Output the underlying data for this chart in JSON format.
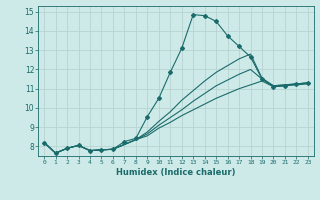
{
  "title": "",
  "xlabel": "Humidex (Indice chaleur)",
  "background_color": "#ceeae8",
  "grid_color": "#b8d4d2",
  "line_color": "#1a6b6b",
  "xlim": [
    -0.5,
    23.5
  ],
  "ylim": [
    7.5,
    15.3
  ],
  "yticks": [
    8,
    9,
    10,
    11,
    12,
    13,
    14,
    15
  ],
  "xticks": [
    0,
    1,
    2,
    3,
    4,
    5,
    6,
    7,
    8,
    9,
    10,
    11,
    12,
    13,
    14,
    15,
    16,
    17,
    18,
    19,
    20,
    21,
    22,
    23
  ],
  "series": [
    [
      8.2,
      7.65,
      7.9,
      8.05,
      7.78,
      7.82,
      7.85,
      8.25,
      8.42,
      9.55,
      10.5,
      11.85,
      13.1,
      14.85,
      14.8,
      14.5,
      13.75,
      13.2,
      12.65,
      11.5,
      11.1,
      11.15,
      11.25,
      11.3
    ],
    [
      8.2,
      7.65,
      7.9,
      8.05,
      7.78,
      7.82,
      7.85,
      8.1,
      8.35,
      8.75,
      9.3,
      9.8,
      10.4,
      10.9,
      11.4,
      11.85,
      12.2,
      12.55,
      12.8,
      11.55,
      11.15,
      11.2,
      11.25,
      11.3
    ],
    [
      8.2,
      7.65,
      7.9,
      8.05,
      7.78,
      7.82,
      7.85,
      8.1,
      8.35,
      8.65,
      9.1,
      9.5,
      9.9,
      10.35,
      10.75,
      11.15,
      11.45,
      11.75,
      12.0,
      11.5,
      11.15,
      11.2,
      11.25,
      11.3
    ],
    [
      8.2,
      7.65,
      7.9,
      8.05,
      7.78,
      7.82,
      7.85,
      8.1,
      8.35,
      8.55,
      8.95,
      9.25,
      9.6,
      9.9,
      10.2,
      10.5,
      10.75,
      11.0,
      11.2,
      11.4,
      11.1,
      11.15,
      11.2,
      11.25
    ]
  ]
}
